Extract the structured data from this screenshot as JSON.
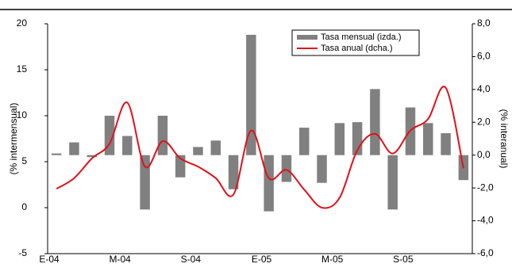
{
  "chart_data": {
    "type": "bar-line",
    "categories": [
      "E-04",
      null,
      null,
      null,
      "M-04",
      null,
      null,
      null,
      "S-04",
      null,
      null,
      null,
      "E-05",
      null,
      null,
      null,
      "M-05",
      null,
      null,
      null,
      "S-05",
      null,
      null,
      null
    ],
    "series": [
      {
        "name": "Tasa mensual (izda.)",
        "type": "bar",
        "color": "#808080",
        "values": [
          5.9,
          7.1,
          5.5,
          10.0,
          7.8,
          -0.2,
          10.0,
          3.3,
          6.6,
          7.3,
          2.0,
          18.8,
          -0.4,
          2.8,
          8.7,
          2.7,
          9.2,
          9.3,
          12.9,
          -0.2,
          10.9,
          9.2,
          8.1,
          3.0
        ]
      },
      {
        "name": "Tasa anual (dcha.)",
        "type": "line",
        "axis": "y2",
        "color": "#e0101b",
        "values": [
          -2.05,
          -1.4,
          -0.2,
          0.7,
          3.2,
          -0.7,
          0.85,
          -0.2,
          -0.7,
          -1.4,
          -2.4,
          1.5,
          -1.4,
          -0.9,
          -2.1,
          -3.2,
          -2.6,
          0.3,
          1.3,
          0.1,
          1.5,
          2.2,
          4.1,
          -0.8
        ]
      }
    ],
    "ylabel": "(% intermensual)",
    "y2label": "(% interanual)",
    "ylim": [
      -5,
      20
    ],
    "yticks": [
      -5,
      0,
      5,
      10,
      15,
      20
    ],
    "y2lim": [
      -6,
      8
    ],
    "y2ticks": [
      {
        "value": -6,
        "label": "-6,0"
      },
      {
        "value": -4,
        "label": "-4,0"
      },
      {
        "value": -2,
        "label": "-2,0"
      },
      {
        "value": 0,
        "label": "0,0"
      },
      {
        "value": 2,
        "label": "2,0"
      },
      {
        "value": 4,
        "label": "4,0"
      },
      {
        "value": 6,
        "label": "6,0"
      },
      {
        "value": 8,
        "label": "8,0"
      }
    ],
    "legend": "upper-right"
  }
}
